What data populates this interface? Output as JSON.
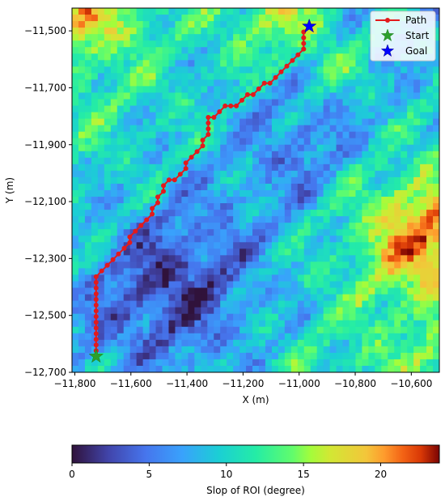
{
  "chart_data": [
    {
      "type": "heatmap",
      "title": "",
      "xlabel": "X (m)",
      "ylabel": "Y (m)",
      "xlim": [
        -11810,
        -10500
      ],
      "ylim": [
        -12700,
        -11420
      ],
      "x_ticks": [
        -11800,
        -11600,
        -11400,
        -11200,
        -11000,
        -10800,
        -10600
      ],
      "x_tick_labels": [
        "−11,800",
        "−11,600",
        "−11,400",
        "−11,200",
        "−11,000",
        "−10,800",
        "−10,600"
      ],
      "y_ticks": [
        -11500,
        -11700,
        -11900,
        -12100,
        -12300,
        -12500,
        -12700
      ],
      "y_tick_labels": [
        "−11,500",
        "−11,700",
        "−11,900",
        "−12,100",
        "−12,300",
        "−12,500",
        "−12,700"
      ],
      "grid": false,
      "colormap": "jet",
      "value_range": [
        0,
        23.8
      ],
      "colorbar_label": "Slop of ROI (degree)",
      "colorbar_ticks": [
        0,
        5,
        10,
        15,
        20
      ],
      "colorbar_tick_labels": [
        "0",
        "5",
        "10",
        "15",
        "20"
      ],
      "legend_position": "top-right",
      "legend": [
        {
          "label": "Path",
          "marker": "line-dot",
          "color": "#e31a1c"
        },
        {
          "label": "Start",
          "marker": "star",
          "color": "#2ca02c"
        },
        {
          "label": "Goal",
          "marker": "star",
          "color": "#0000ff"
        }
      ],
      "path": {
        "name": "Path",
        "color": "#e31a1c",
        "points": [
          [
            -11724,
            -12644
          ],
          [
            -11724,
            -12624
          ],
          [
            -11724,
            -12604
          ],
          [
            -11724,
            -12584
          ],
          [
            -11724,
            -12564
          ],
          [
            -11724,
            -12544
          ],
          [
            -11724,
            -12524
          ],
          [
            -11724,
            -12504
          ],
          [
            -11724,
            -12484
          ],
          [
            -11724,
            -12464
          ],
          [
            -11724,
            -12444
          ],
          [
            -11724,
            -12424
          ],
          [
            -11724,
            -12404
          ],
          [
            -11724,
            -12384
          ],
          [
            -11724,
            -12364
          ],
          [
            -11704,
            -12344
          ],
          [
            -11684,
            -12324
          ],
          [
            -11664,
            -12304
          ],
          [
            -11644,
            -12284
          ],
          [
            -11624,
            -12264
          ],
          [
            -11604,
            -12244
          ],
          [
            -11604,
            -12224
          ],
          [
            -11584,
            -12204
          ],
          [
            -11564,
            -12184
          ],
          [
            -11544,
            -12164
          ],
          [
            -11524,
            -12144
          ],
          [
            -11524,
            -12124
          ],
          [
            -11504,
            -12104
          ],
          [
            -11504,
            -12084
          ],
          [
            -11484,
            -12064
          ],
          [
            -11484,
            -12044
          ],
          [
            -11464,
            -12024
          ],
          [
            -11444,
            -12024
          ],
          [
            -11424,
            -12004
          ],
          [
            -11404,
            -11984
          ],
          [
            -11404,
            -11964
          ],
          [
            -11384,
            -11944
          ],
          [
            -11364,
            -11924
          ],
          [
            -11344,
            -11904
          ],
          [
            -11344,
            -11884
          ],
          [
            -11324,
            -11864
          ],
          [
            -11324,
            -11844
          ],
          [
            -11324,
            -11824
          ],
          [
            -11324,
            -11804
          ],
          [
            -11304,
            -11804
          ],
          [
            -11284,
            -11784
          ],
          [
            -11264,
            -11764
          ],
          [
            -11244,
            -11764
          ],
          [
            -11224,
            -11764
          ],
          [
            -11204,
            -11744
          ],
          [
            -11184,
            -11724
          ],
          [
            -11164,
            -11724
          ],
          [
            -11144,
            -11704
          ],
          [
            -11124,
            -11684
          ],
          [
            -11104,
            -11684
          ],
          [
            -11084,
            -11664
          ],
          [
            -11064,
            -11644
          ],
          [
            -11044,
            -11624
          ],
          [
            -11024,
            -11604
          ],
          [
            -11004,
            -11584
          ],
          [
            -10984,
            -11564
          ],
          [
            -10984,
            -11544
          ],
          [
            -10984,
            -11524
          ],
          [
            -10984,
            -11504
          ],
          [
            -10964,
            -11484
          ]
        ]
      },
      "start": {
        "label": "Start",
        "x": -11724,
        "y": -12644,
        "color": "#2ca02c"
      },
      "goal": {
        "label": "Goal",
        "x": -10964,
        "y": -11484,
        "color": "#0000ff"
      }
    }
  ]
}
